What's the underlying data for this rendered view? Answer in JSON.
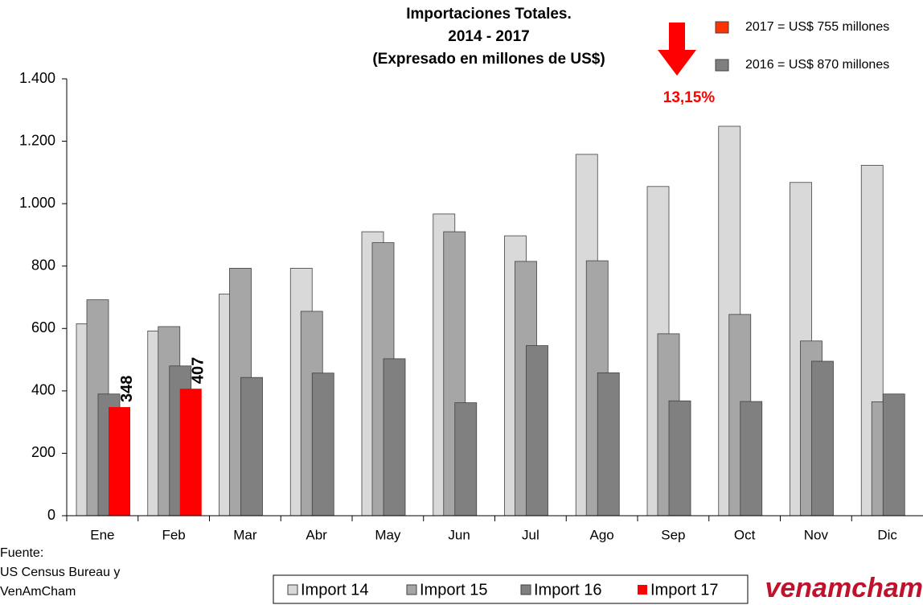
{
  "chart_data": {
    "type": "bar",
    "title": [
      "Importaciones Totales.",
      "2014 - 2017",
      "(Expresado en millones de US$)"
    ],
    "categories": [
      "Ene",
      "Feb",
      "Mar",
      "Abr",
      "May",
      "Jun",
      "Jul",
      "Ago",
      "Sep",
      "Oct",
      "Nov",
      "Dic"
    ],
    "series": [
      {
        "name": "Import 14",
        "color": "#d9d9d9",
        "values": [
          615,
          592,
          710,
          793,
          910,
          967,
          897,
          1158,
          1055,
          1248,
          1068,
          1123
        ]
      },
      {
        "name": "Import 15",
        "color": "#a6a6a6",
        "values": [
          692,
          606,
          793,
          655,
          875,
          910,
          815,
          817,
          583,
          645,
          560,
          365
        ]
      },
      {
        "name": "Import 16",
        "color": "#808080",
        "values": [
          390,
          480,
          443,
          457,
          503,
          362,
          545,
          458,
          368,
          366,
          495,
          390
        ]
      },
      {
        "name": "Import 17",
        "color": "#ff0000",
        "show_labels": true,
        "values": [
          348,
          407,
          null,
          null,
          null,
          null,
          null,
          null,
          null,
          null,
          null,
          null
        ]
      }
    ],
    "ylim": [
      0,
      1400
    ],
    "yticks": [
      0,
      200,
      400,
      600,
      800,
      {
        "value": 1000,
        "label": "1.000"
      },
      {
        "value": 1200,
        "label": "1.200"
      },
      {
        "value": 1400,
        "label": "1.400"
      }
    ],
    "legend": "bottom",
    "summary": [
      {
        "label": "2017 = US$ 755 millones",
        "color": "#ff3300"
      },
      {
        "label": "2016 = US$ 870 millones",
        "color": "#7f7f7f"
      }
    ],
    "change": "13,15%",
    "source": [
      "Fuente:",
      "US Census Bureau y",
      "VenAmCham"
    ],
    "logo": "venamcham"
  }
}
